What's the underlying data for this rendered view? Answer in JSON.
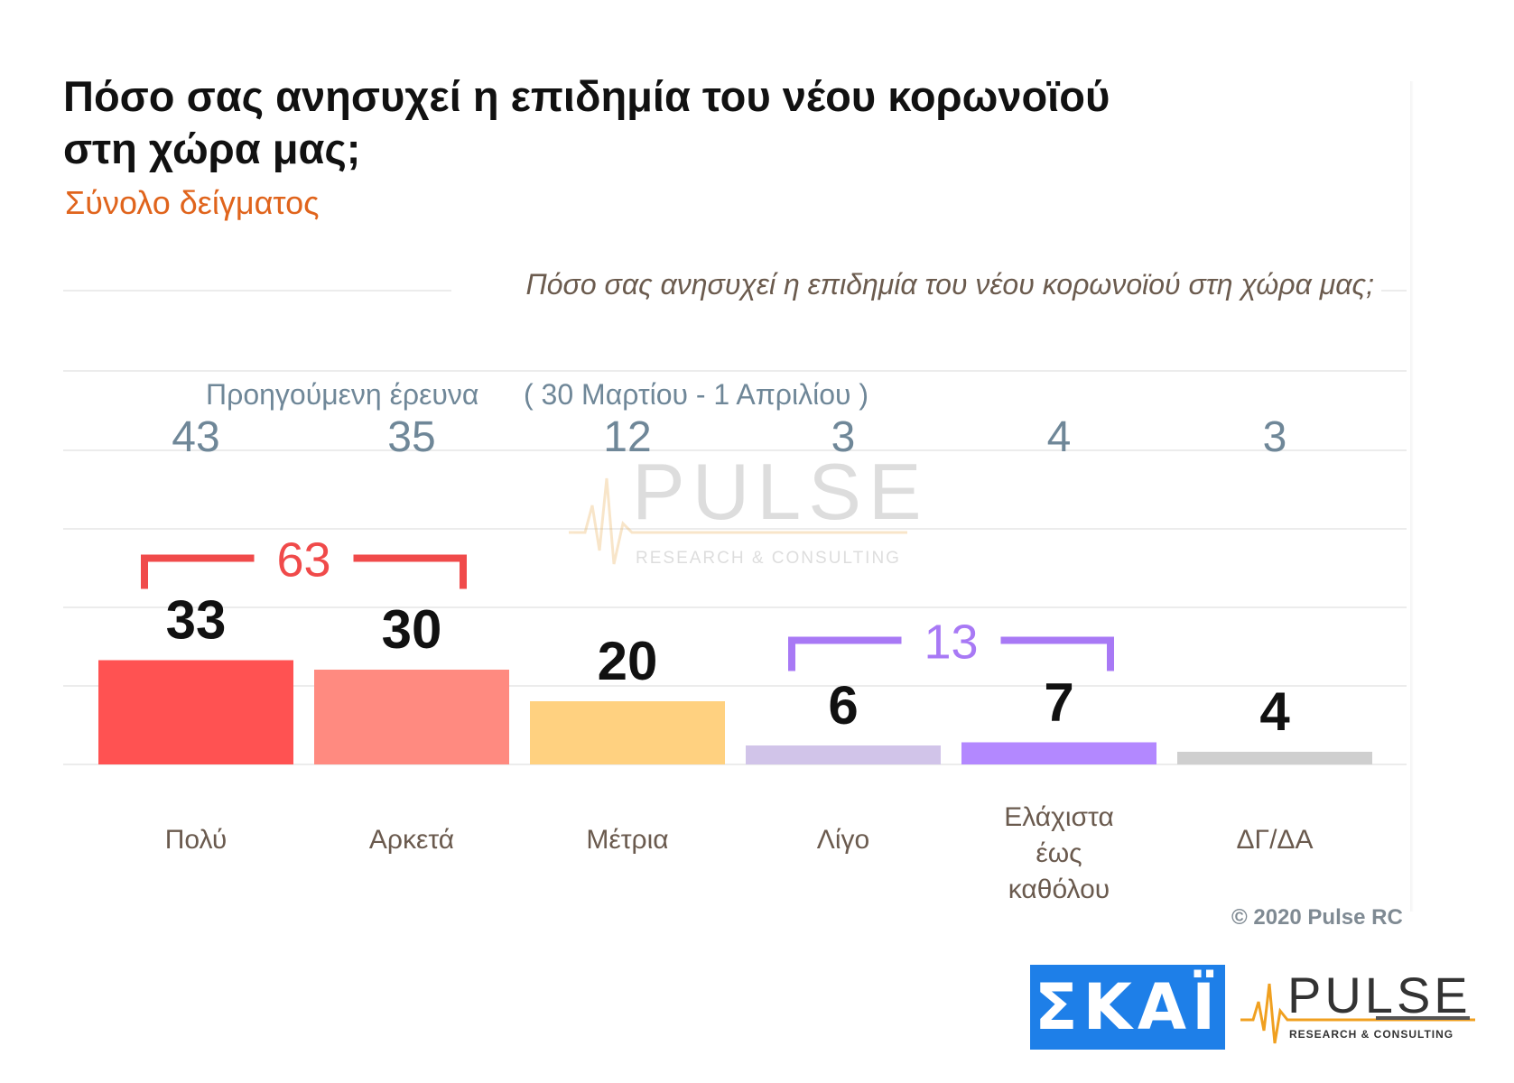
{
  "title": "Πόσο σας ανησυχεί η επιδημία του νέου κορωνοϊού στη χώρα μας;",
  "subtitle": "Σύνολο δείγματος",
  "chart_data": {
    "type": "bar",
    "question_label": "Πόσο σας ανησυχεί η επιδημία του νέου κορωνοϊού στη χώρα μας;",
    "categories": [
      "Πολύ",
      "Αρκετά",
      "Μέτρια",
      "Λίγο",
      "Ελάχιστα έως καθόλου",
      "ΔΓ/ΔΑ"
    ],
    "series": [
      {
        "values": [
          33,
          30,
          20,
          6,
          7,
          4
        ]
      },
      {
        "name": "Προηγούμενη έρευνα ( 30 Μαρτίου - 1 Απριλίου )",
        "values": [
          43,
          35,
          12,
          3,
          4,
          3
        ]
      }
    ],
    "previous_label": "Προηγούμενη έρευνα",
    "previous_dates": "( 30 Μαρτίου - 1 Απριλίου )",
    "bar_colors": [
      "#ff5252",
      "#ff8a80",
      "#ffd180",
      "#d1c4e9",
      "#b388ff",
      "#cfcfcf"
    ],
    "groupings": [
      {
        "label": "63",
        "from": 0,
        "to": 1,
        "color": "#f04a4a"
      },
      {
        "label": "13",
        "from": 3,
        "to": 4,
        "color": "#a879f5"
      }
    ],
    "ylim": [
      0,
      100
    ],
    "grid": true
  },
  "watermark": {
    "name": "PULSE",
    "tagline": "RESEARCH & CONSULTING"
  },
  "copyright": "© 2020 Pulse RC",
  "logos": {
    "skai": "ΣΚΑΪ",
    "pulse": "PULSE",
    "pulse_tagline": "RESEARCH & CONSULTING"
  }
}
